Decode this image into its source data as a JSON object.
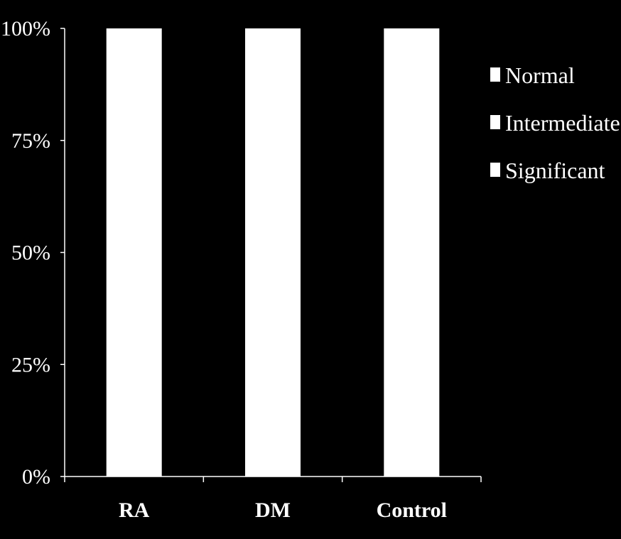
{
  "chart_data": {
    "type": "bar",
    "stacked": true,
    "percent": true,
    "categories": [
      "RA",
      "DM",
      "Control"
    ],
    "series": [
      {
        "name": "Normal",
        "values": [
          100,
          100,
          100
        ],
        "color": "#ffffff"
      },
      {
        "name": "Intermediate",
        "values": [
          0,
          0,
          0
        ],
        "color": "#ffffff"
      },
      {
        "name": "Significant",
        "values": [
          0,
          0,
          0
        ],
        "color": "#ffffff"
      }
    ],
    "yticks": [
      "0%",
      "25%",
      "50%",
      "75%",
      "100%"
    ],
    "ytick_values": [
      0,
      25,
      50,
      75,
      100
    ],
    "ylim": [
      0,
      100
    ],
    "title": "",
    "xlabel": "",
    "ylabel": "",
    "grid": false,
    "legend_position": "right",
    "background_color": "#000000",
    "axis_color": "#ffffff"
  }
}
